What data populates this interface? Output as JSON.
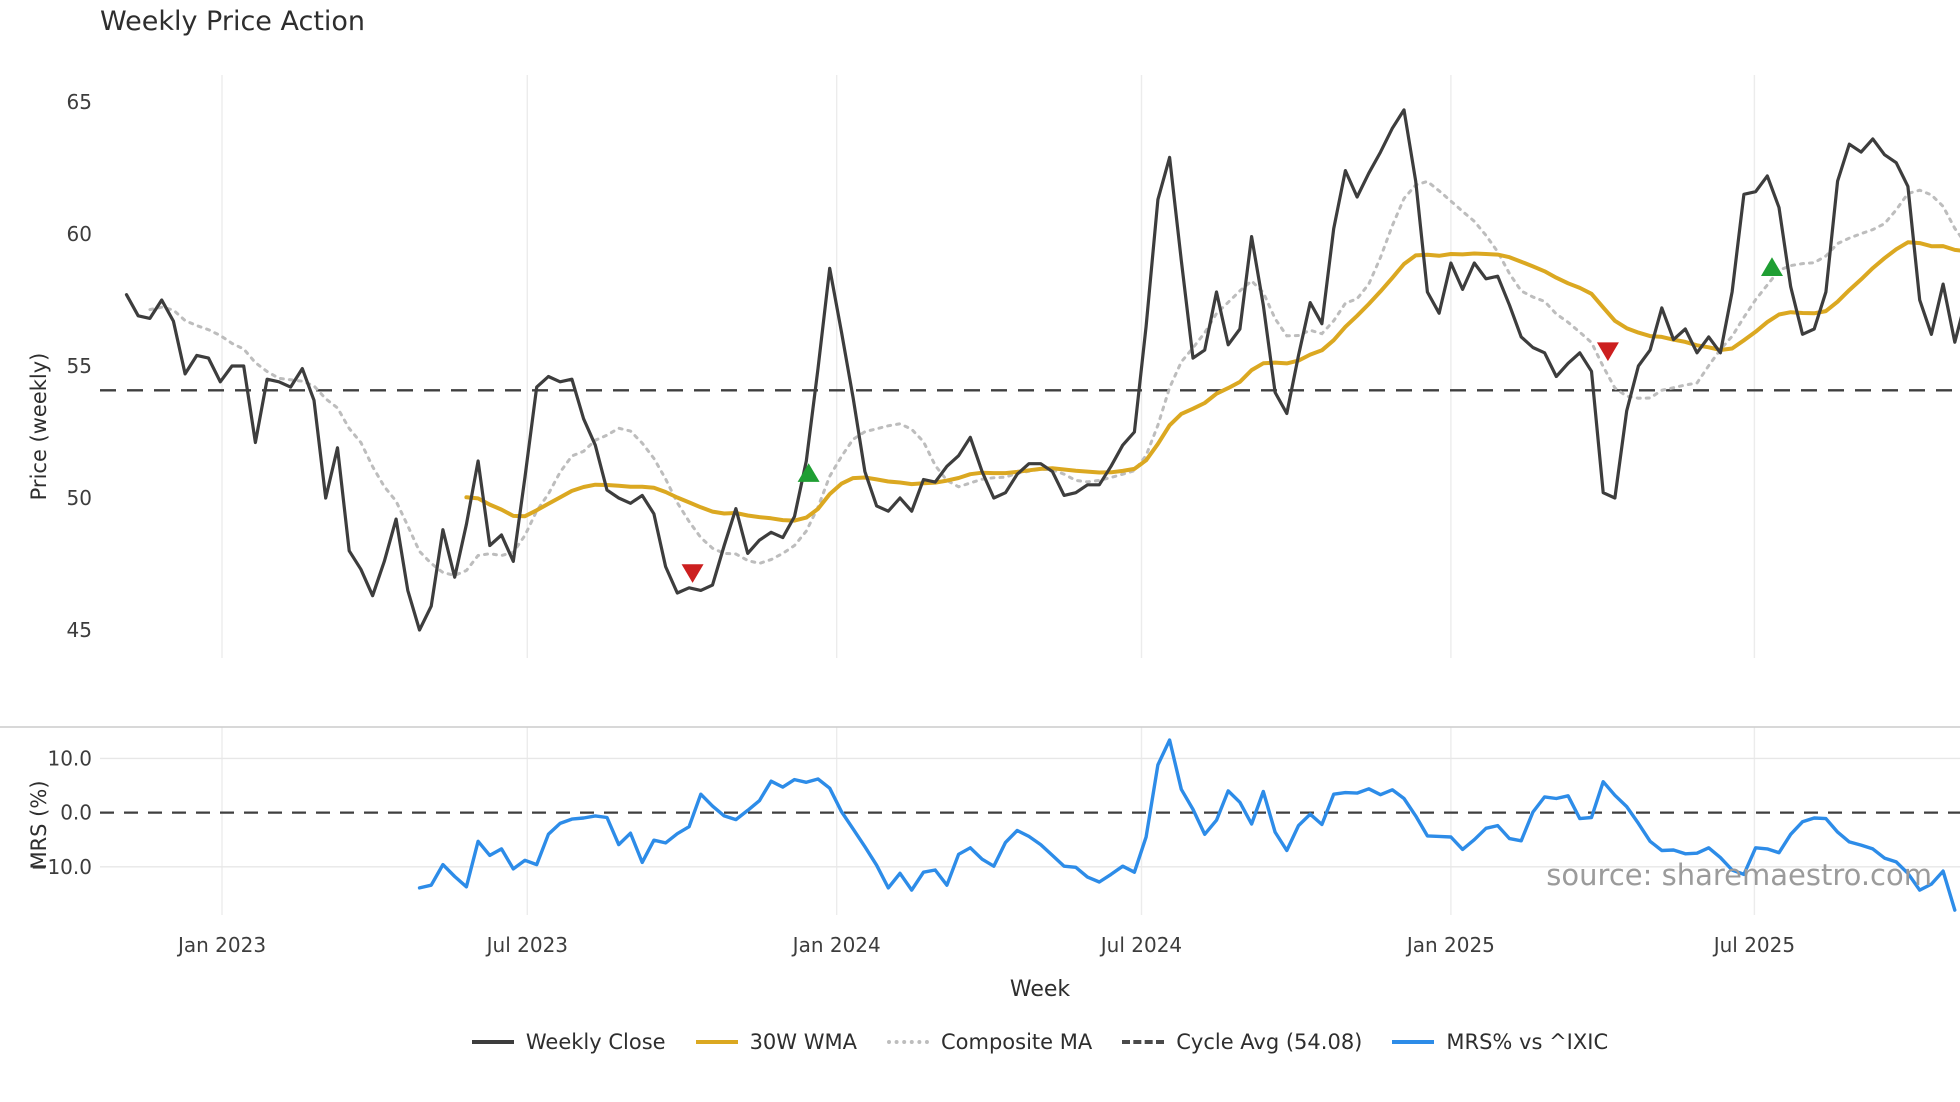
{
  "title": "Weekly Price Action",
  "source_text": "source: sharemaestro.com",
  "colors": {
    "close": "#3d3d3d",
    "wma": "#dba821",
    "composite": "#bdbdbd",
    "cycle": "#3f3f3f",
    "mrs": "#2d8ce8",
    "buy_marker": "#1f9e33",
    "sell_marker": "#cc1f1f",
    "grid": "#ececec",
    "mrs_grid": "#e7e7e7",
    "mrs_spine": "#cccccc",
    "tick_text": "#3d3d3d"
  },
  "price_panel": {
    "ylabel": "Price (weekly)",
    "yticks": [
      45,
      50,
      55,
      60,
      65
    ],
    "ylim": [
      43.94,
      66.02
    ]
  },
  "mrs_panel": {
    "ylabel": "MRS (%)",
    "yticks": [
      10.0,
      0.0,
      -10.0
    ],
    "ytick_labels": [
      "10.0",
      "0.0",
      "−10.0"
    ],
    "ylim": [
      -18.9,
      15.8
    ]
  },
  "xaxis": {
    "label": "Week",
    "ticks": [
      {
        "label": "Jan 2023",
        "week": 8.15
      },
      {
        "label": "Jul 2023",
        "week": 34.2
      },
      {
        "label": "Jan 2024",
        "week": 60.6
      },
      {
        "label": "Jul 2024",
        "week": 86.6
      },
      {
        "label": "Jan 2025",
        "week": 113.0
      },
      {
        "label": "Jul 2025",
        "week": 138.9
      }
    ]
  },
  "legend": [
    {
      "label": "Weekly Close",
      "swatch": "solid",
      "color": "#3d3d3d"
    },
    {
      "label": "30W WMA",
      "swatch": "solid",
      "color": "#dba821"
    },
    {
      "label": "Composite MA",
      "swatch": "dotted",
      "color": "#bdbdbd"
    },
    {
      "label": "Cycle Avg (54.08)",
      "swatch": "dashed",
      "color": "#4a4a4a"
    },
    {
      "label": "MRS% vs ^IXIC",
      "swatch": "solid",
      "color": "#2d8ce8"
    }
  ],
  "chart_data": {
    "type": "line",
    "title": "Weekly Price Action",
    "xlabel": "Week",
    "ylabel_top": "Price (weekly)",
    "ylabel_bottom": "MRS (%)",
    "frequency": "weekly",
    "start_week_label": "Nov 2022",
    "cycle_avg": 54.08,
    "wma_window": 30,
    "composite_window": 9,
    "price_ylim": [
      43.94,
      66.02
    ],
    "mrs_ylim": [
      -18.9,
      15.8
    ],
    "series": [
      {
        "name": "Weekly Close",
        "start_week": 0,
        "values": [
          57.7,
          56.9,
          56.8,
          57.5,
          56.7,
          54.7,
          55.4,
          55.3,
          54.4,
          55.0,
          55.0,
          52.1,
          54.5,
          54.4,
          54.2,
          54.9,
          53.7,
          50.0,
          51.9,
          48.0,
          47.3,
          46.3,
          47.6,
          49.2,
          46.5,
          45.0,
          45.9,
          48.8,
          47.0,
          49.0,
          51.4,
          48.2,
          48.6,
          47.6,
          50.8,
          54.2,
          54.6,
          54.4,
          54.5,
          53.0,
          52.0,
          50.3,
          50.0,
          49.8,
          50.1,
          49.4,
          47.4,
          46.4,
          46.6,
          46.5,
          46.7,
          48.2,
          49.6,
          47.9,
          48.4,
          48.7,
          48.5,
          49.3,
          51.4,
          54.9,
          58.7,
          56.3,
          53.8,
          51.0,
          49.7,
          49.5,
          50.0,
          49.5,
          50.7,
          50.6,
          51.2,
          51.6,
          52.3,
          51.0,
          50.0,
          50.2,
          50.9,
          51.3,
          51.3,
          51.0,
          50.1,
          50.2,
          50.5,
          50.5,
          51.2,
          52.0,
          52.5,
          56.5,
          61.3,
          62.9,
          59.0,
          55.3,
          55.6,
          57.8,
          55.8,
          56.4,
          59.9,
          57.3,
          54.0,
          53.2,
          55.4,
          57.4,
          56.6,
          60.2,
          62.4,
          61.4,
          62.3,
          63.1,
          64.0,
          64.7,
          62.0,
          57.8,
          57.0,
          58.9,
          57.9,
          58.9,
          58.3,
          58.4,
          57.3,
          56.1,
          55.7,
          55.5,
          54.6,
          55.1,
          55.5,
          54.8,
          50.2,
          50.0,
          53.3,
          55.0,
          55.6,
          57.2,
          56.0,
          56.4,
          55.5,
          56.1,
          55.5,
          57.8,
          61.5,
          61.6,
          62.2,
          61.0,
          58.0,
          56.2,
          56.4,
          57.8,
          62.0,
          63.4,
          63.1,
          63.6,
          63.0,
          62.7,
          61.8,
          57.5,
          56.2,
          58.1,
          55.9,
          57.6
        ]
      },
      {
        "name": "MRS% vs ^IXIC",
        "start_week": 25,
        "values": [
          -13.9,
          -13.4,
          -9.6,
          -11.8,
          -13.7,
          -5.3,
          -7.9,
          -6.7,
          -10.4,
          -8.8,
          -9.6,
          -4.0,
          -2.0,
          -1.2,
          -1.0,
          -0.6,
          -0.9,
          -5.9,
          -3.8,
          -9.2,
          -5.1,
          -5.6,
          -3.9,
          -2.6,
          3.4,
          1.2,
          -0.6,
          -1.3,
          0.4,
          2.2,
          5.8,
          4.7,
          6.1,
          5.6,
          6.2,
          4.5,
          0.2,
          -3.0,
          -6.3,
          -9.7,
          -13.9,
          -11.2,
          -14.3,
          -11.0,
          -10.6,
          -13.4,
          -7.7,
          -6.5,
          -8.6,
          -9.9,
          -5.5,
          -3.3,
          -4.4,
          -5.9,
          -7.9,
          -9.9,
          -10.1,
          -11.9,
          -12.8,
          -11.4,
          -9.9,
          -11.0,
          -4.5,
          8.8,
          13.4,
          4.3,
          0.6,
          -4.0,
          -1.4,
          4.0,
          1.9,
          -2.1,
          3.9,
          -3.6,
          -7.0,
          -2.4,
          -0.3,
          -2.2,
          3.4,
          3.7,
          3.6,
          4.4,
          3.3,
          4.2,
          2.6,
          -0.6,
          -4.3,
          -4.4,
          -4.5,
          -6.8,
          -5.0,
          -2.9,
          -2.4,
          -4.8,
          -5.2,
          0.1,
          2.9,
          2.6,
          3.1,
          -1.1,
          -0.9,
          5.7,
          3.2,
          1.1,
          -2.0,
          -5.3,
          -7.0,
          -6.9,
          -7.6,
          -7.5,
          -6.5,
          -8.3,
          -10.6,
          -11.4,
          -6.5,
          -6.7,
          -7.4,
          -4.0,
          -1.7,
          -1.0,
          -1.1,
          -3.6,
          -5.4,
          -6.0,
          -6.7,
          -8.4,
          -9.1,
          -11.2,
          -14.3,
          -13.2,
          -10.8,
          -18.0
        ]
      }
    ],
    "markers": [
      {
        "type": "sell",
        "week": 48.3,
        "value": 47.2
      },
      {
        "type": "buy",
        "week": 58.2,
        "value": 50.9
      },
      {
        "type": "sell",
        "week": 126.4,
        "value": 55.6
      },
      {
        "type": "buy",
        "week": 140.4,
        "value": 58.7
      }
    ],
    "legend_entries": [
      "Weekly Close",
      "30W WMA",
      "Composite MA",
      "Cycle Avg (54.08)",
      "MRS% vs ^IXIC"
    ],
    "legend_position": "bottom center",
    "grid": "vertical month gridlines both panels; horizontal gridlines at ±10 in MRS panel"
  }
}
